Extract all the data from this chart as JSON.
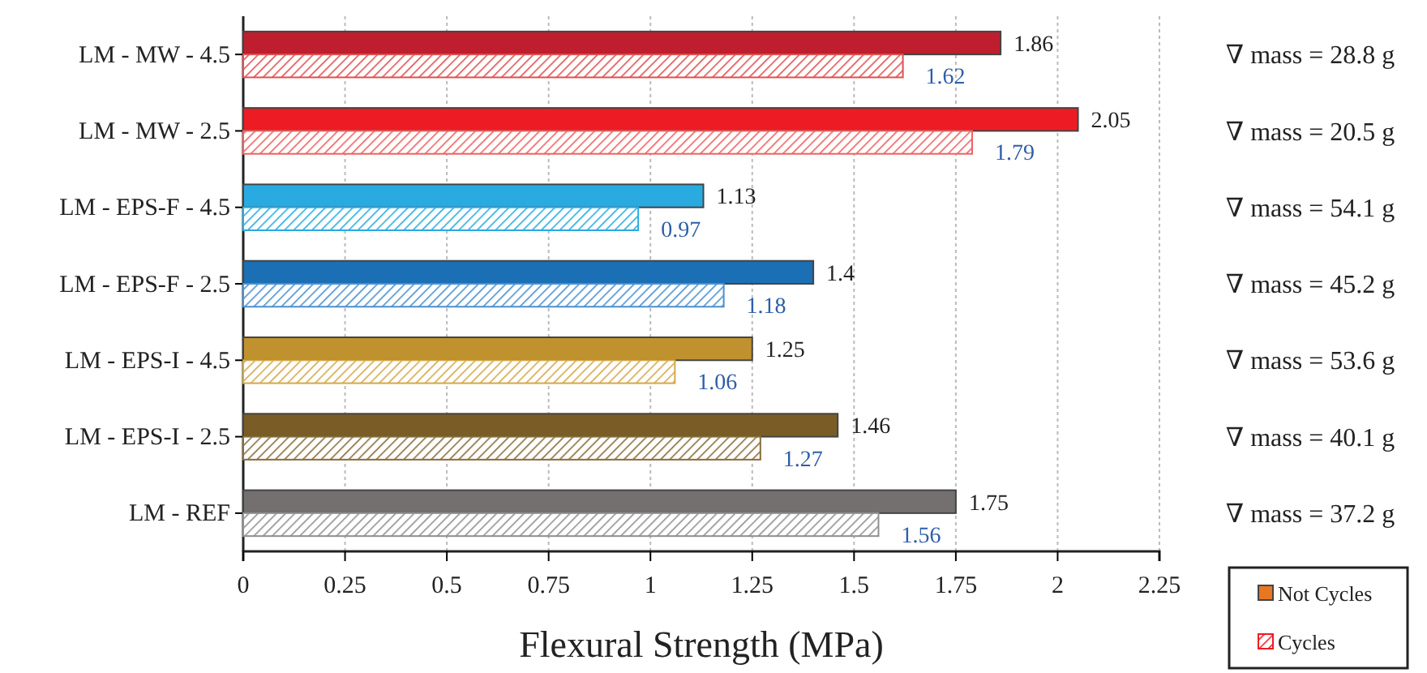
{
  "chart_data": {
    "type": "bar",
    "orientation": "horizontal",
    "xlabel": "Flexural Strength (MPa)",
    "categories": [
      "LM - MW - 4.5",
      "LM - MW - 2.5",
      "LM - EPS-F - 4.5",
      "LM - EPS-F - 2.5",
      "LM - EPS-I - 4.5",
      "LM - EPS-I - 2.5",
      "LM - REF"
    ],
    "series": [
      {
        "name": "Not Cycles",
        "color": "#e87722",
        "colors": [
          "#be1e2d",
          "#ed1c24",
          "#29abe2",
          "#1a6fb5",
          "#c0922f",
          "#7a5c27",
          "#747070"
        ],
        "values": [
          1.86,
          2.05,
          1.13,
          1.4,
          1.25,
          1.46,
          1.75
        ]
      },
      {
        "name": "Cycles",
        "color": "#ed1c24",
        "colors": [
          "#e05050",
          "#f06060",
          "#29abe2",
          "#4a90d0",
          "#d4a84a",
          "#8a6d3a",
          "#909090"
        ],
        "values": [
          1.62,
          1.79,
          0.97,
          1.18,
          1.06,
          1.27,
          1.56
        ]
      }
    ],
    "xlim": [
      0,
      2.25
    ],
    "xticks": [
      0,
      0.25,
      0.5,
      0.75,
      1,
      1.25,
      1.5,
      1.75,
      2,
      2.25
    ],
    "grid": "x",
    "legend": "bottom right",
    "data_labels": true,
    "annotations": [
      "∇ mass = 28.8 g",
      "∇ mass = 20.5 g",
      "∇ mass = 54.1 g",
      "∇ mass = 45.2 g",
      "∇ mass = 53.6 g",
      "∇ mass = 40.1 g",
      "∇ mass = 37.2 g"
    ]
  }
}
